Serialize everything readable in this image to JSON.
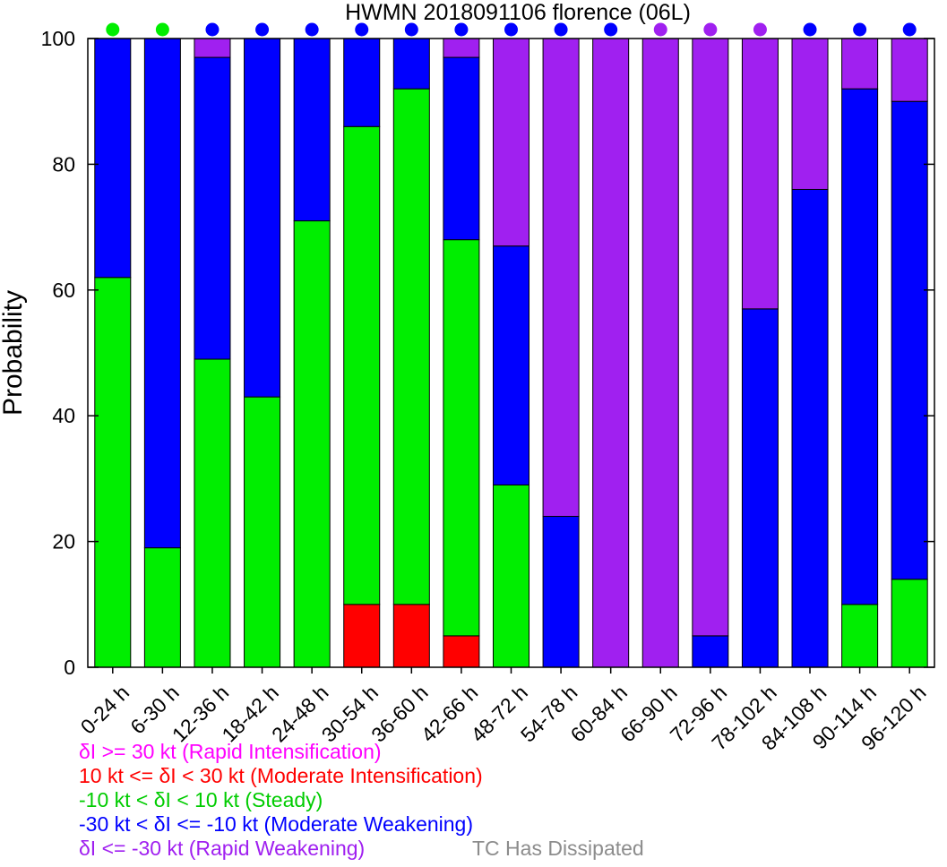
{
  "chart_data": {
    "type": "bar",
    "stacked": true,
    "title": "HWMN 2018091106 florence (06L)",
    "xlabel": "",
    "ylabel": "Probability",
    "ylim": [
      0,
      100
    ],
    "yticks": [
      0,
      20,
      40,
      60,
      80,
      100
    ],
    "grid": false,
    "categories": [
      "0-24 h",
      "6-30 h",
      "12-36 h",
      "18-42 h",
      "24-48 h",
      "30-54 h",
      "36-60 h",
      "42-66 h",
      "48-72 h",
      "54-78 h",
      "60-84 h",
      "66-90 h",
      "72-96 h",
      "78-102 h",
      "84-108 h",
      "90-114 h",
      "96-120 h"
    ],
    "series": [
      {
        "name": "δI >= 30 kt (Rapid Intensification)",
        "color": "#ff00ff",
        "values": [
          0,
          0,
          0,
          0,
          0,
          0,
          0,
          0,
          0,
          0,
          0,
          0,
          0,
          0,
          0,
          0,
          0
        ]
      },
      {
        "name": "10 kt <= δI < 30 kt (Moderate Intensification)",
        "color": "#ff0000",
        "values": [
          0,
          0,
          0,
          0,
          0,
          10,
          10,
          5,
          0,
          0,
          0,
          0,
          0,
          0,
          0,
          0,
          0
        ]
      },
      {
        "name": "-10 kt < δI < 10 kt (Steady)",
        "color": "#00ee00",
        "values": [
          62,
          19,
          49,
          43,
          71,
          76,
          82,
          63,
          29,
          0,
          0,
          0,
          0,
          0,
          0,
          10,
          14
        ]
      },
      {
        "name": "-30 kt < δI <= -10 kt (Moderate Weakening)",
        "color": "#0000ff",
        "values": [
          38,
          81,
          48,
          57,
          29,
          14,
          8,
          29,
          38,
          24,
          0,
          0,
          5,
          57,
          76,
          82,
          76
        ]
      },
      {
        "name": "δI <= -30 kt (Rapid Weakening)",
        "color": "#a020f0",
        "values": [
          0,
          0,
          3,
          0,
          0,
          0,
          0,
          3,
          33,
          76,
          100,
          100,
          95,
          43,
          24,
          8,
          10
        ]
      }
    ],
    "top_markers": [
      "Steady",
      "Steady",
      "Moderate Weakening",
      "Moderate Weakening",
      "Moderate Weakening",
      "Moderate Weakening",
      "Moderate Weakening",
      "Moderate Weakening",
      "Moderate Weakening",
      "Moderate Weakening",
      "Moderate Weakening",
      "Rapid Weakening",
      "Rapid Weakening",
      "Rapid Weakening",
      "Moderate Weakening",
      "Moderate Weakening",
      "Moderate Weakening"
    ],
    "marker_colors": {
      "Steady": "#00ee00",
      "Moderate Weakening": "#0000ff",
      "Rapid Weakening": "#a020f0"
    },
    "dissipated_label": "TC Has Dissipated",
    "dissipated_color": "#8c8c8c"
  }
}
